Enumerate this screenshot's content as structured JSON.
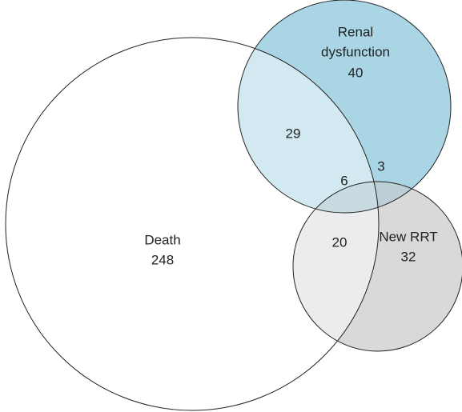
{
  "sets": [
    {
      "label": [
        "Death"
      ],
      "count": 248
    },
    {
      "label": [
        "Renal",
        "dysfunction"
      ],
      "count": 40
    },
    {
      "label": [
        "New RRT"
      ],
      "count": 32
    }
  ],
  "overlaps": {
    "death_renal": 29,
    "death_renal_rrt": 6,
    "renal_rrt": 3,
    "death_rrt": 20
  }
}
